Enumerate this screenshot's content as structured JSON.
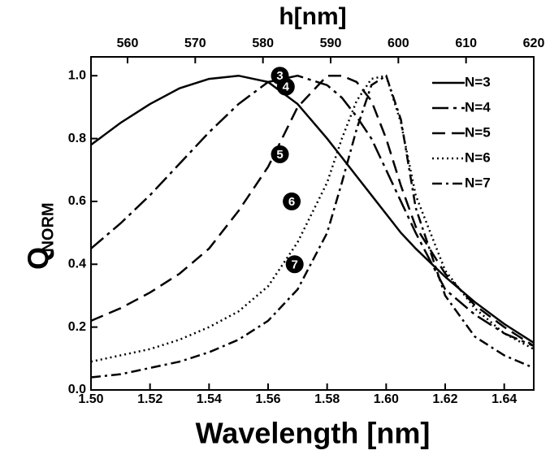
{
  "chart_data": {
    "type": "line",
    "xlabel": "Wavelength [nm]",
    "x2label": "h[nm]",
    "ylabel": "Q",
    "ylabel_subscript": "NORM",
    "x": [
      1.5,
      1.51,
      1.52,
      1.53,
      1.54,
      1.55,
      1.56,
      1.57,
      1.58,
      1.585,
      1.59,
      1.595,
      1.6,
      1.605,
      1.61,
      1.62,
      1.63,
      1.64,
      1.65
    ],
    "series": [
      {
        "name": "N=3",
        "color": "#000000",
        "dash": "solid",
        "values": [
          0.78,
          0.85,
          0.91,
          0.96,
          0.99,
          1.0,
          0.98,
          0.91,
          0.8,
          0.74,
          0.68,
          0.62,
          0.56,
          0.5,
          0.45,
          0.36,
          0.28,
          0.21,
          0.15
        ]
      },
      {
        "name": "N=4",
        "color": "#000000",
        "dash": "dashdot-long",
        "values": [
          0.45,
          0.53,
          0.62,
          0.72,
          0.82,
          0.91,
          0.98,
          1.0,
          0.97,
          0.93,
          0.87,
          0.8,
          0.7,
          0.6,
          0.5,
          0.32,
          0.24,
          0.18,
          0.14
        ]
      },
      {
        "name": "N=5",
        "color": "#000000",
        "dash": "dashed",
        "values": [
          0.22,
          0.26,
          0.31,
          0.37,
          0.45,
          0.57,
          0.71,
          0.9,
          1.0,
          1.0,
          0.98,
          0.92,
          0.8,
          0.65,
          0.52,
          0.37,
          0.27,
          0.2,
          0.14
        ]
      },
      {
        "name": "N=6",
        "color": "#000000",
        "dash": "dotted",
        "values": [
          0.09,
          0.11,
          0.13,
          0.16,
          0.2,
          0.25,
          0.33,
          0.47,
          0.66,
          0.8,
          0.92,
          0.99,
          1.0,
          0.85,
          0.62,
          0.38,
          0.26,
          0.18,
          0.13
        ]
      },
      {
        "name": "N=7",
        "color": "#000000",
        "dash": "dashdot",
        "values": [
          0.04,
          0.05,
          0.07,
          0.09,
          0.12,
          0.16,
          0.22,
          0.32,
          0.5,
          0.66,
          0.83,
          0.97,
          1.0,
          0.86,
          0.58,
          0.3,
          0.17,
          0.11,
          0.07
        ]
      }
    ],
    "annotations": [
      {
        "text": "3",
        "x": 1.564,
        "y": 1.0
      },
      {
        "text": "4",
        "x": 1.566,
        "y": 0.965
      },
      {
        "text": "5",
        "x": 1.564,
        "y": 0.75
      },
      {
        "text": "6",
        "x": 1.568,
        "y": 0.6
      },
      {
        "text": "7",
        "x": 1.569,
        "y": 0.4
      }
    ],
    "xlim": [
      1.5,
      1.65
    ],
    "xticks": [
      {
        "value": 1.5,
        "label": "1.50"
      },
      1.52,
      1.54,
      1.56,
      1.58,
      {
        "value": 1.6,
        "label": "1.60"
      },
      1.62,
      1.64
    ],
    "x2lim": [
      554.6,
      620
    ],
    "x2ticks": [
      560,
      570,
      580,
      590,
      600,
      610,
      620
    ],
    "ylim": [
      0,
      1.06
    ],
    "yticks": [
      {
        "value": 0,
        "label": "0.0"
      },
      0.2,
      0.4,
      0.6,
      0.8,
      {
        "value": 1,
        "label": "1.0"
      }
    ],
    "legend": "upper right",
    "grid": false
  }
}
